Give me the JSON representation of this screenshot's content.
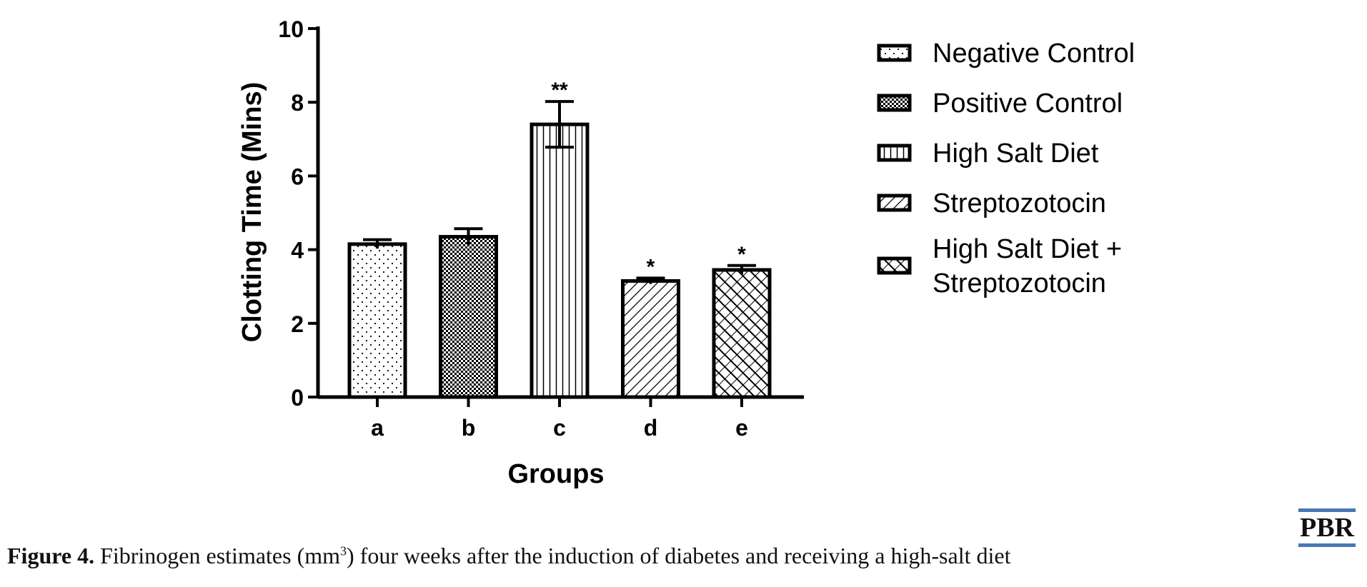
{
  "chart_data": {
    "type": "bar",
    "categories": [
      "a",
      "b",
      "c",
      "d",
      "e"
    ],
    "values": [
      4.15,
      4.35,
      7.4,
      3.15,
      3.45
    ],
    "errors": [
      0.12,
      0.22,
      0.62,
      0.08,
      0.12
    ],
    "annotations": [
      "",
      "",
      "**",
      "*",
      "*"
    ],
    "xlabel": "Groups",
    "ylabel": "Clotting Time (Mins)",
    "ylim": [
      0,
      10
    ],
    "yticks": [
      0,
      2,
      4,
      6,
      8,
      10
    ],
    "grid": false,
    "legend_placement": "right",
    "legend": [
      {
        "label": "Negative Control",
        "pattern": "dots"
      },
      {
        "label": "Positive Control",
        "pattern": "checker"
      },
      {
        "label": "High Salt Diet",
        "pattern": "vertical-lines"
      },
      {
        "label": "Streptozotocin",
        "pattern": "diagonal-lines"
      },
      {
        "label": "High Salt Diet + Streptozotocin",
        "label_lines": [
          "High Salt Diet +",
          "Streptozotocin"
        ],
        "pattern": "crosshatch"
      }
    ],
    "colors": {
      "bar_stroke": "#000000",
      "fill": "#ffffff"
    }
  },
  "caption": {
    "label": "Figure 4.",
    "text_before_sup": " Fibrinogen estimates (mm",
    "sup": "3",
    "text_after_sup": ") four weeks after the induction of diabetes and receiving a high-salt diet"
  },
  "logo": {
    "text": "PBR",
    "accent": "#4a77b4"
  }
}
